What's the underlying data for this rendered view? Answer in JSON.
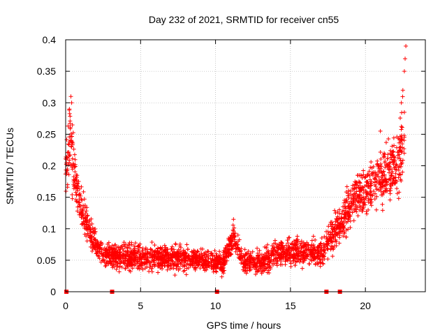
{
  "chart_data": {
    "type": "scatter",
    "title": "Day 232 of 2021, SRMTID for receiver cn55",
    "xlabel": "GPS time / hours",
    "ylabel": "SRMTID / TECUs",
    "xlim": [
      0,
      24
    ],
    "ylim": [
      0,
      0.4
    ],
    "x_ticks": [
      0,
      5,
      10,
      15,
      20
    ],
    "x_tick_labels": [
      "0",
      "5",
      "10",
      "15",
      "20"
    ],
    "y_ticks": [
      0,
      0.05,
      0.1,
      0.15,
      0.2,
      0.25,
      0.3,
      0.35,
      0.4
    ],
    "y_tick_labels": [
      "0",
      "0.05",
      "0.1",
      "0.15",
      "0.2",
      "0.25",
      "0.3",
      "0.35",
      "0.4"
    ],
    "grid": true,
    "marker": "+",
    "color": "#ff0000",
    "baseline_markers_x": [
      0.05,
      3.1,
      10.1,
      17.4,
      18.3
    ],
    "envelope": [
      {
        "x": 0.0,
        "y": 0.2,
        "spread": 0.06
      },
      {
        "x": 0.15,
        "y": 0.21,
        "spread": 0.07
      },
      {
        "x": 0.3,
        "y": 0.25,
        "spread": 0.08
      },
      {
        "x": 0.5,
        "y": 0.2,
        "spread": 0.07
      },
      {
        "x": 0.8,
        "y": 0.15,
        "spread": 0.05
      },
      {
        "x": 1.2,
        "y": 0.12,
        "spread": 0.045
      },
      {
        "x": 1.8,
        "y": 0.085,
        "spread": 0.035
      },
      {
        "x": 2.5,
        "y": 0.06,
        "spread": 0.025
      },
      {
        "x": 3.5,
        "y": 0.055,
        "spread": 0.03
      },
      {
        "x": 5.0,
        "y": 0.055,
        "spread": 0.03
      },
      {
        "x": 7.0,
        "y": 0.055,
        "spread": 0.03
      },
      {
        "x": 9.0,
        "y": 0.05,
        "spread": 0.025
      },
      {
        "x": 10.5,
        "y": 0.045,
        "spread": 0.025
      },
      {
        "x": 11.2,
        "y": 0.09,
        "spread": 0.025
      },
      {
        "x": 11.8,
        "y": 0.05,
        "spread": 0.025
      },
      {
        "x": 13.0,
        "y": 0.045,
        "spread": 0.025
      },
      {
        "x": 14.0,
        "y": 0.06,
        "spread": 0.03
      },
      {
        "x": 15.5,
        "y": 0.065,
        "spread": 0.03
      },
      {
        "x": 17.0,
        "y": 0.06,
        "spread": 0.03
      },
      {
        "x": 17.8,
        "y": 0.09,
        "spread": 0.04
      },
      {
        "x": 18.5,
        "y": 0.11,
        "spread": 0.045
      },
      {
        "x": 19.2,
        "y": 0.15,
        "spread": 0.05
      },
      {
        "x": 20.0,
        "y": 0.16,
        "spread": 0.055
      },
      {
        "x": 21.0,
        "y": 0.18,
        "spread": 0.06
      },
      {
        "x": 22.0,
        "y": 0.2,
        "spread": 0.07
      },
      {
        "x": 22.6,
        "y": 0.25,
        "spread": 0.1
      }
    ],
    "peaks": [
      {
        "x": 0.35,
        "y": 0.31
      },
      {
        "x": 0.25,
        "y": 0.29
      },
      {
        "x": 0.4,
        "y": 0.3
      },
      {
        "x": 11.2,
        "y": 0.115
      },
      {
        "x": 22.7,
        "y": 0.39
      },
      {
        "x": 22.65,
        "y": 0.37
      },
      {
        "x": 22.6,
        "y": 0.35
      },
      {
        "x": 22.4,
        "y": 0.3
      },
      {
        "x": 21.0,
        "y": 0.255
      },
      {
        "x": 22.5,
        "y": 0.32
      }
    ]
  }
}
